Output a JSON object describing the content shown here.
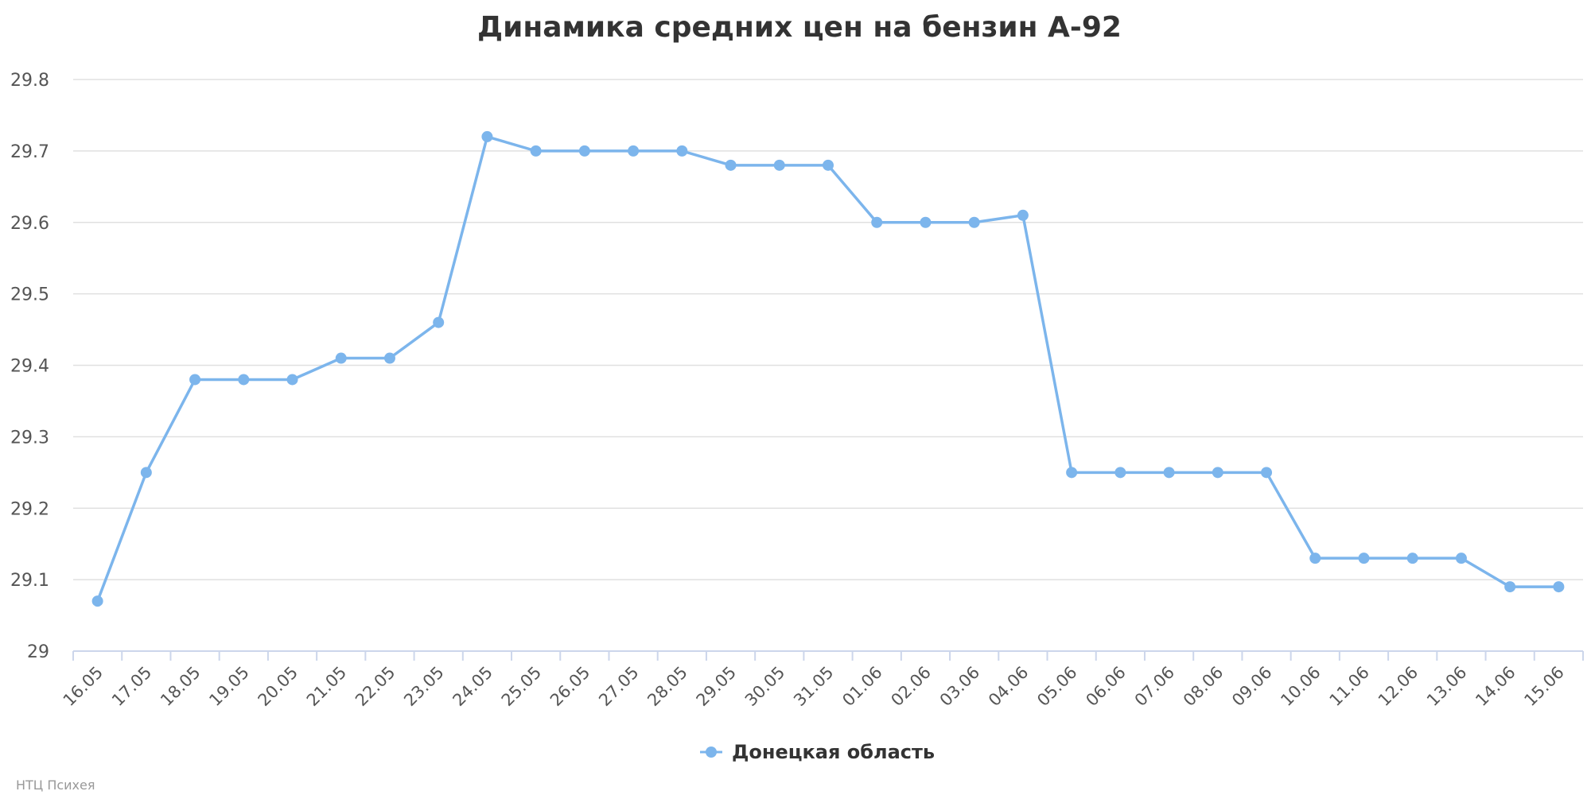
{
  "chart_data": {
    "type": "line",
    "title": "Динамика средних цен на бензин А-92",
    "xlabel": "",
    "ylabel": "",
    "categories": [
      "16.05",
      "17.05",
      "18.05",
      "19.05",
      "20.05",
      "21.05",
      "22.05",
      "23.05",
      "24.05",
      "25.05",
      "26.05",
      "27.05",
      "28.05",
      "29.05",
      "30.05",
      "31.05",
      "01.06",
      "02.06",
      "03.06",
      "04.06",
      "05.06",
      "06.06",
      "07.06",
      "08.06",
      "09.06",
      "10.06",
      "11.06",
      "12.06",
      "13.06",
      "14.06",
      "15.06"
    ],
    "series": [
      {
        "name": "Донецкая область",
        "color": "#7cb5ec",
        "values": [
          29.07,
          29.25,
          29.38,
          29.38,
          29.38,
          29.41,
          29.41,
          29.46,
          29.72,
          29.7,
          29.7,
          29.7,
          29.7,
          29.68,
          29.68,
          29.68,
          29.6,
          29.6,
          29.6,
          29.61,
          29.25,
          29.25,
          29.25,
          29.25,
          29.25,
          29.13,
          29.13,
          29.13,
          29.13,
          29.09,
          29.09
        ]
      }
    ],
    "ylim": [
      29,
      29.8
    ],
    "yticks": [
      "29",
      "29.1",
      "29.2",
      "29.3",
      "29.4",
      "29.5",
      "29.6",
      "29.7",
      "29.8"
    ],
    "grid": true,
    "legend_position": "bottom-center",
    "credit": "НТЦ Психея"
  }
}
